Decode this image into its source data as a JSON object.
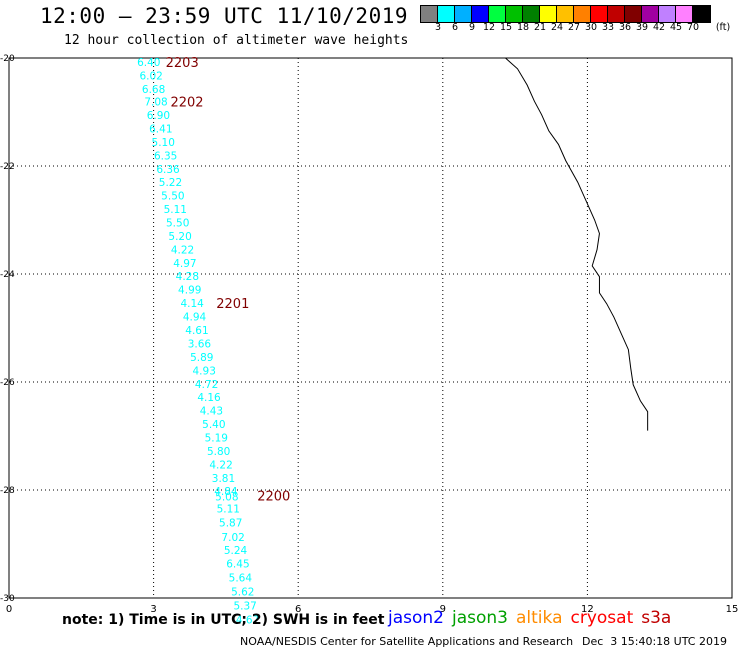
{
  "header": {
    "title": "12:00 — 23:59 UTC 11/10/2019",
    "subtitle": "12 hour collection of altimeter wave heights"
  },
  "colorbar": {
    "colors": [
      "#808080",
      "#00ffff",
      "#00b0ff",
      "#0000ff",
      "#00ff40",
      "#00c000",
      "#008000",
      "#ffff00",
      "#ffc000",
      "#ff8000",
      "#ff0000",
      "#c00000",
      "#800000",
      "#a000a0",
      "#c080ff",
      "#ff80ff",
      "#000000"
    ],
    "labels": [
      "3",
      "6",
      "9",
      "12",
      "15",
      "18",
      "21",
      "24",
      "27",
      "30",
      "33",
      "36",
      "39",
      "42",
      "45",
      "70"
    ],
    "unit": "(ft)"
  },
  "chart_data": {
    "type": "scatter",
    "title": "12:00 — 23:59 UTC 11/10/2019",
    "xlabel": "",
    "ylabel": "",
    "xlim": [
      0,
      15
    ],
    "ylim": [
      -30,
      -20
    ],
    "xticks": [
      "0",
      "3",
      "6",
      "9",
      "12",
      "15"
    ],
    "yticks": [
      "-20",
      "-22",
      "-24",
      "-26",
      "-28",
      "-30"
    ],
    "grid": true,
    "points": [
      {
        "x": 2.9,
        "y": -20.07,
        "label": "6.40"
      },
      {
        "x": 2.95,
        "y": -20.32,
        "label": "6.02"
      },
      {
        "x": 3.0,
        "y": -20.57,
        "label": "6.68"
      },
      {
        "x": 3.05,
        "y": -20.81,
        "label": "7.08"
      },
      {
        "x": 3.1,
        "y": -21.06,
        "label": "6.90"
      },
      {
        "x": 3.15,
        "y": -21.31,
        "label": "6.41"
      },
      {
        "x": 3.2,
        "y": -21.56,
        "label": "5.10"
      },
      {
        "x": 3.25,
        "y": -21.81,
        "label": "6.35"
      },
      {
        "x": 3.3,
        "y": -22.06,
        "label": "6.36"
      },
      {
        "x": 3.35,
        "y": -22.3,
        "label": "5.22"
      },
      {
        "x": 3.4,
        "y": -22.55,
        "label": "5.50"
      },
      {
        "x": 3.45,
        "y": -22.8,
        "label": "5.11"
      },
      {
        "x": 3.5,
        "y": -23.05,
        "label": "5.50"
      },
      {
        "x": 3.55,
        "y": -23.3,
        "label": "5.20"
      },
      {
        "x": 3.6,
        "y": -23.55,
        "label": "4.22"
      },
      {
        "x": 3.65,
        "y": -23.8,
        "label": "4.97"
      },
      {
        "x": 3.7,
        "y": -24.04,
        "label": "4.28"
      },
      {
        "x": 3.75,
        "y": -24.29,
        "label": "4.99"
      },
      {
        "x": 3.8,
        "y": -24.54,
        "label": "4.14"
      },
      {
        "x": 3.85,
        "y": -24.79,
        "label": "4.94"
      },
      {
        "x": 3.9,
        "y": -25.04,
        "label": "4.61"
      },
      {
        "x": 3.95,
        "y": -25.29,
        "label": "3.66"
      },
      {
        "x": 4.0,
        "y": -25.54,
        "label": "5.89"
      },
      {
        "x": 4.05,
        "y": -25.79,
        "label": "4.93"
      },
      {
        "x": 4.1,
        "y": -26.04,
        "label": "4.72"
      },
      {
        "x": 4.15,
        "y": -26.28,
        "label": "4.16"
      },
      {
        "x": 4.2,
        "y": -26.53,
        "label": "4.43"
      },
      {
        "x": 4.25,
        "y": -26.78,
        "label": "5.40"
      },
      {
        "x": 4.3,
        "y": -27.03,
        "label": "5.19"
      },
      {
        "x": 4.35,
        "y": -27.28,
        "label": "5.80"
      },
      {
        "x": 4.4,
        "y": -27.53,
        "label": "4.22"
      },
      {
        "x": 4.45,
        "y": -27.78,
        "label": "3.81"
      },
      {
        "x": 4.5,
        "y": -28.02,
        "label": "4.84"
      },
      {
        "x": 4.52,
        "y": -28.12,
        "label": "5.08"
      },
      {
        "x": 4.55,
        "y": -28.34,
        "label": "5.11"
      },
      {
        "x": 4.6,
        "y": -28.6,
        "label": "5.87"
      },
      {
        "x": 4.65,
        "y": -28.87,
        "label": "7.02"
      },
      {
        "x": 4.7,
        "y": -29.11,
        "label": "5.24"
      },
      {
        "x": 4.75,
        "y": -29.36,
        "label": "6.45"
      },
      {
        "x": 4.8,
        "y": -29.62,
        "label": "5.64"
      },
      {
        "x": 4.85,
        "y": -29.88,
        "label": "5.62"
      },
      {
        "x": 4.9,
        "y": -30.14,
        "label": "5.37"
      },
      {
        "x": 4.95,
        "y": -30.4,
        "label": "4.67"
      }
    ],
    "time_labels": [
      {
        "x": 3.25,
        "y": -20.07,
        "label": "2203"
      },
      {
        "x": 3.35,
        "y": -20.81,
        "label": "2202"
      },
      {
        "x": 4.3,
        "y": -24.54,
        "label": "2201"
      },
      {
        "x": 5.15,
        "y": -28.1,
        "label": "2200"
      }
    ],
    "point_color": "#00ffff",
    "time_label_color": "#800000",
    "coastline": [
      [
        10.3,
        -20.0
      ],
      [
        10.55,
        -20.2
      ],
      [
        10.75,
        -20.5
      ],
      [
        10.9,
        -20.8
      ],
      [
        11.05,
        -21.05
      ],
      [
        11.2,
        -21.35
      ],
      [
        11.4,
        -21.6
      ],
      [
        11.55,
        -21.9
      ],
      [
        11.8,
        -22.3
      ],
      [
        12.0,
        -22.7
      ],
      [
        12.15,
        -23.0
      ],
      [
        12.25,
        -23.25
      ],
      [
        12.2,
        -23.55
      ],
      [
        12.1,
        -23.85
      ],
      [
        12.25,
        -24.05
      ],
      [
        12.25,
        -24.35
      ],
      [
        12.4,
        -24.55
      ],
      [
        12.55,
        -24.8
      ],
      [
        12.7,
        -25.1
      ],
      [
        12.85,
        -25.4
      ],
      [
        12.9,
        -25.75
      ],
      [
        12.95,
        -26.05
      ],
      [
        13.1,
        -26.35
      ],
      [
        13.25,
        -26.55
      ],
      [
        13.25,
        -26.9
      ]
    ]
  },
  "footer": {
    "note": "note: 1) Time is in UTC; 2) SWH is in feet",
    "satellites": [
      {
        "name": "jason2",
        "color": "#0000ff"
      },
      {
        "name": "jason3",
        "color": "#00a000"
      },
      {
        "name": "altika",
        "color": "#ff8c00"
      },
      {
        "name": "cryosat",
        "color": "#ff0000"
      },
      {
        "name": "s3a",
        "color": "#c00000"
      }
    ],
    "credit": "NOAA/NESDIS Center for Satellite Applications and Research",
    "timestamp": "Dec  3 15:40:18 UTC 2019"
  }
}
